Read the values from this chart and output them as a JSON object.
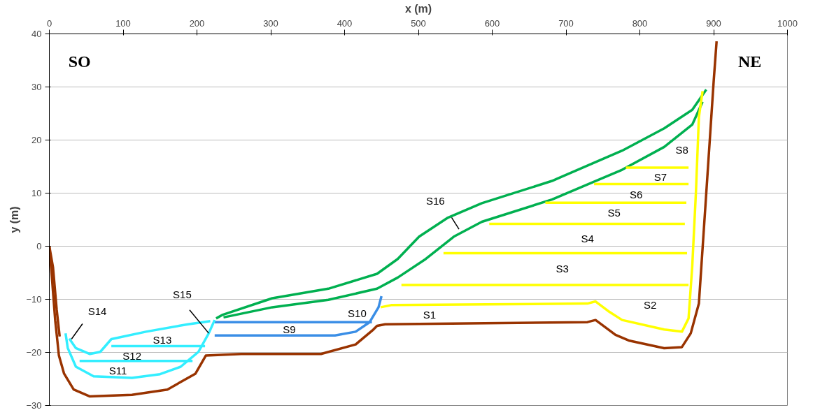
{
  "chart_data": {
    "type": "line",
    "xlabel": "x (m)",
    "ylabel": "y (m)",
    "xlim": [
      0,
      1000
    ],
    "ylim": [
      -30,
      40
    ],
    "xticks": [
      0,
      100,
      200,
      300,
      400,
      500,
      600,
      700,
      800,
      900,
      1000
    ],
    "yticks": [
      -30,
      -20,
      -10,
      0,
      10,
      20,
      30,
      40
    ],
    "grid": "y",
    "marker": "none",
    "line_style": "solid",
    "series": [
      {
        "color": "#993300",
        "x": [
          0,
          3,
          8,
          13,
          20,
          33,
          55,
          112,
          160,
          198,
          212,
          260,
          368,
          415,
          439,
          444,
          455,
          729,
          740,
          767,
          786,
          833,
          857,
          869,
          880,
          890,
          900,
          904
        ],
        "values": [
          0,
          -5,
          -14,
          -20.6,
          -24,
          -27,
          -28.3,
          -28,
          -27,
          -24,
          -20.6,
          -20.3,
          -20.3,
          -18.5,
          -15.7,
          -15,
          -14.7,
          -14.3,
          -13.9,
          -16.7,
          -17.8,
          -19.2,
          -19,
          -16.4,
          -10.8,
          10,
          31,
          38.6
        ]
      },
      {
        "color": "#993300",
        "x": [
          0,
          5,
          10,
          14
        ],
        "values": [
          0,
          -4,
          -12,
          -17
        ]
      },
      {
        "color": "#00b050",
        "x": [
          226,
          235,
          302,
          378,
          444,
          472,
          501,
          539,
          586,
          681,
          776,
          833,
          871,
          890
        ],
        "values": [
          -13.6,
          -12.9,
          -9.8,
          -8,
          -5.2,
          -2.4,
          1.8,
          5.3,
          8.1,
          12.3,
          18,
          22.2,
          25.7,
          29.5
        ]
      },
      {
        "color": "#00b050",
        "x": [
          236,
          302,
          378,
          444,
          472,
          510,
          548,
          586,
          681,
          776,
          833,
          871,
          885
        ],
        "values": [
          -13.4,
          -11.5,
          -10.1,
          -8,
          -5.9,
          -2.4,
          1.8,
          4.6,
          8.8,
          14.4,
          18.7,
          22.9,
          27.2
        ]
      },
      {
        "color": "#ffff00",
        "x": [
          449,
          463,
          729,
          740,
          757,
          776,
          833,
          857,
          866,
          871,
          876,
          880,
          885
        ],
        "values": [
          -11.5,
          -11.1,
          -10.8,
          -10.4,
          -12.2,
          -13.9,
          -15.7,
          -16.1,
          -13.6,
          -3.8,
          10.2,
          24.3,
          29.2
        ]
      },
      {
        "color": "#ffff00",
        "x": [
          477,
          866
        ],
        "values": [
          -7.3,
          -7.3
        ]
      },
      {
        "color": "#ffff00",
        "x": [
          534,
          864
        ],
        "values": [
          -1.3,
          -1.3
        ]
      },
      {
        "color": "#ffff00",
        "x": [
          596,
          861
        ],
        "values": [
          4.2,
          4.2
        ]
      },
      {
        "color": "#ffff00",
        "x": [
          672,
          863
        ],
        "values": [
          8.2,
          8.2
        ]
      },
      {
        "color": "#ffff00",
        "x": [
          738,
          866
        ],
        "values": [
          11.7,
          11.7
        ]
      },
      {
        "color": "#ffff00",
        "x": [
          781,
          866
        ],
        "values": [
          14.8,
          14.8
        ]
      },
      {
        "color": "#3a8ee6",
        "x": [
          224,
          387,
          415,
          434,
          446,
          450
        ],
        "values": [
          -16.8,
          -16.8,
          -16.1,
          -14.3,
          -11.5,
          -9.4
        ]
      },
      {
        "color": "#3a8ee6",
        "x": [
          224,
          437
        ],
        "values": [
          -14.3,
          -14.3
        ]
      },
      {
        "color": "#33eeff",
        "x": [
          22,
          25,
          36,
          60,
          112,
          150,
          178,
          202,
          216,
          224
        ],
        "values": [
          -16.4,
          -19.2,
          -22.7,
          -24.5,
          -24.8,
          -24.1,
          -22.7,
          -19.9,
          -16.4,
          -13.9
        ]
      },
      {
        "color": "#33eeff",
        "x": [
          27,
          36,
          55,
          69,
          84,
          131,
          188,
          218
        ],
        "values": [
          -17.4,
          -19.2,
          -20.3,
          -19.9,
          -17.5,
          -16.1,
          -14.7,
          -14.1
        ]
      },
      {
        "color": "#33eeff",
        "x": [
          84,
          211
        ],
        "values": [
          -18.8,
          -18.8
        ]
      },
      {
        "color": "#33eeff",
        "x": [
          41,
          194
        ],
        "values": [
          -21.6,
          -21.6
        ]
      }
    ],
    "annotations": [
      "S1",
      "S2",
      "S3",
      "S4",
      "S5",
      "S6",
      "S7",
      "S8",
      "S9",
      "S10",
      "S11",
      "S12",
      "S13",
      {
        "text": "S14",
        "x": 30,
        "y": -17.5
      },
      {
        "text": "S15",
        "x": 216,
        "y": -16.4
      },
      {
        "text": "S16",
        "x": 555,
        "y": 3.2
      },
      "SO",
      "NE"
    ]
  }
}
